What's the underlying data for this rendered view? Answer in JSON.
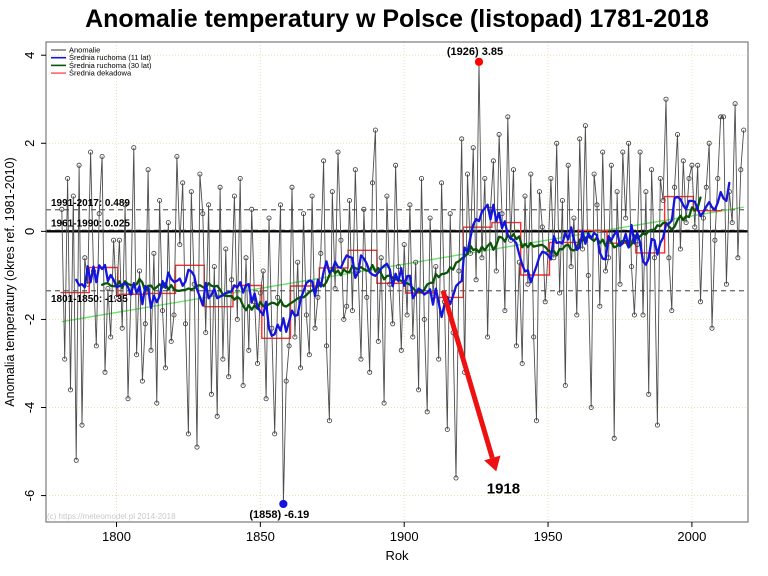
{
  "watermark": "(c) https://meteomodel.pl 2014-2018",
  "chart_data": {
    "type": "line",
    "title": "Anomalie temperatury w Polsce (listopad) 1781-2018",
    "xlabel": "Rok",
    "ylabel": "Anomalia temperatury (okres ref. 1981-2010)",
    "x_ticks": [
      1800,
      1850,
      1900,
      1950,
      2000
    ],
    "y_ticks": [
      4,
      2,
      0,
      -2,
      -4,
      -6
    ],
    "xlim": [
      1775.5,
      2019.5
    ],
    "ylim": [
      -6.6,
      4.3
    ],
    "grid": true,
    "grid_color": "#e6deae",
    "legend_position": "top-left",
    "start_year": 1781,
    "end_year": 2018,
    "zero_line": 0,
    "series": [
      {
        "name": "Anomalie",
        "color": "#4d4d4d",
        "legend_color": "#808080",
        "type": "yearly",
        "values": [
          0.5,
          -2.9,
          1.2,
          -3.6,
          0.8,
          -5.2,
          1.5,
          -4.4,
          -0.6,
          -1.2,
          1.8,
          -0.9,
          -2.6,
          0.4,
          1.7,
          -3.2,
          -1.3,
          -2.4,
          -0.2,
          -1.5,
          -0.2,
          -2.2,
          0.6,
          -3.8,
          -1.4,
          1.9,
          -2.8,
          -0.9,
          -3.4,
          -2.1,
          1.4,
          -2.7,
          -0.5,
          -3.9,
          0.7,
          -1.8,
          -3.1,
          0.2,
          -2.5,
          -1.9,
          1.7,
          -0.3,
          1.1,
          -2.1,
          -4.6,
          0.9,
          -1.2,
          -4.9,
          1.3,
          0.4,
          -2.3,
          0.6,
          -3.7,
          -0.8,
          -4.2,
          1.0,
          -2.9,
          -0.4,
          -3.3,
          -1.1,
          0.8,
          -2.0,
          1.2,
          -3.5,
          -0.6,
          -2.7,
          0.5,
          -1.6,
          -3.0,
          -1.4,
          -0.9,
          -3.8,
          0.3,
          -2.2,
          -4.6,
          -1.5,
          0.6,
          -6.19,
          -3.4,
          -2.6,
          1.0,
          -2.4,
          -0.7,
          -3.1,
          0.4,
          -1.9,
          -2.8,
          0.8,
          -2.2,
          -1.5,
          -0.5,
          1.6,
          -2.6,
          -4.3,
          0.9,
          -1.3,
          1.8,
          -0.2,
          -2.0,
          -1.7,
          0.7,
          -1.8,
          1.4,
          -0.9,
          -2.9,
          0.5,
          -1.5,
          -3.2,
          1.1,
          2.3,
          -2.5,
          -0.6,
          -3.9,
          0.8,
          -1.2,
          -2.1,
          1.5,
          -0.8,
          -2.7,
          -0.3,
          -1.9,
          0.6,
          -2.4,
          -0.7,
          -3.6,
          1.2,
          -2.0,
          -4.1,
          0.3,
          -1.4,
          -0.8,
          -2.9,
          1.1,
          -1.6,
          -4.5,
          0.4,
          -2.3,
          -5.6,
          -0.9,
          2.1,
          -3.2,
          1.3,
          -0.5,
          1.9,
          -1.1,
          3.85,
          -0.6,
          1.2,
          -2.4,
          0.5,
          1.6,
          -0.9,
          2.2,
          0.4,
          -1.8,
          2.6,
          -0.2,
          1.4,
          -2.6,
          -0.7,
          -3.0,
          0.8,
          -1.2,
          1.3,
          -2.4,
          -4.3,
          0.9,
          0.1,
          -1.6,
          -0.5,
          1.2,
          -0.6,
          2.0,
          -1.4,
          0.7,
          -3.5,
          1.5,
          -0.8,
          0.3,
          -1.9,
          2.1,
          -0.4,
          2.4,
          -1.0,
          -4.0,
          1.3,
          0.6,
          -1.7,
          1.8,
          -0.9,
          -0.6,
          1.5,
          -4.7,
          0.9,
          -1.2,
          1.8,
          0.3,
          2.0,
          -0.8,
          -1.9,
          -0.3,
          1.8,
          -1.9,
          0.9,
          -3.7,
          1.4,
          -0.6,
          -4.4,
          1.2,
          0.7,
          3.0,
          -0.6,
          -1.8,
          1.0,
          2.2,
          -0.4,
          1.6,
          0.2,
          1.2,
          1.5,
          0.1,
          1.5,
          -1.6,
          0.3,
          1.0,
          2.0,
          -2.2,
          -0.2,
          1.2,
          2.6,
          2.6,
          -1.2,
          0.9,
          0.2,
          2.9,
          -0.6,
          1.4,
          2.3
        ]
      },
      {
        "name": "Średnia ruchoma (11 lat)",
        "color": "#1414dd",
        "legend_color": "#1414dd",
        "type": "moving-average",
        "window": 11,
        "derived_from": "Anomalie"
      },
      {
        "name": "Średnia ruchoma (30 lat)",
        "color": "#0a540a",
        "legend_color": "#0a540a",
        "type": "moving-average",
        "window": 30,
        "derived_from": "Anomalie"
      },
      {
        "name": "Średnia dekadowa",
        "color": "#ff2a2a",
        "legend_color": "#ff6666",
        "type": "decadal-mean",
        "derived_from": "Anomalie"
      }
    ],
    "reference_lines": [
      {
        "label": "1991-2017: 0.489",
        "value": 0.489,
        "label_color": "#007a00",
        "label_side": "above"
      },
      {
        "label": "1961-1990: 0.025",
        "value": 0.025,
        "label_color": "#007a00",
        "label_side": "above"
      },
      {
        "label": "1801-1850: -1.35",
        "value": -1.35,
        "label_color": "#007a00",
        "label_side": "below"
      }
    ],
    "trend_line": {
      "from": [
        1781,
        -2.05
      ],
      "to": [
        2018,
        0.55
      ],
      "color": "#6ee66e"
    },
    "point_annotations": [
      {
        "year": 1926,
        "value": 3.85,
        "label": "(1926) 3.85",
        "color": "#ff0000",
        "label_side": "above"
      },
      {
        "year": 1858,
        "value": -6.19,
        "label": "(1858) -6.19",
        "color": "#1414dd",
        "label_side": "below"
      }
    ],
    "arrow_annotation": {
      "label": "1918",
      "color": "#ee1111",
      "from": [
        1913.5,
        -1.35
      ],
      "to": [
        1932,
        -5.45
      ],
      "label_at": [
        1934.5,
        -5.95
      ]
    }
  }
}
